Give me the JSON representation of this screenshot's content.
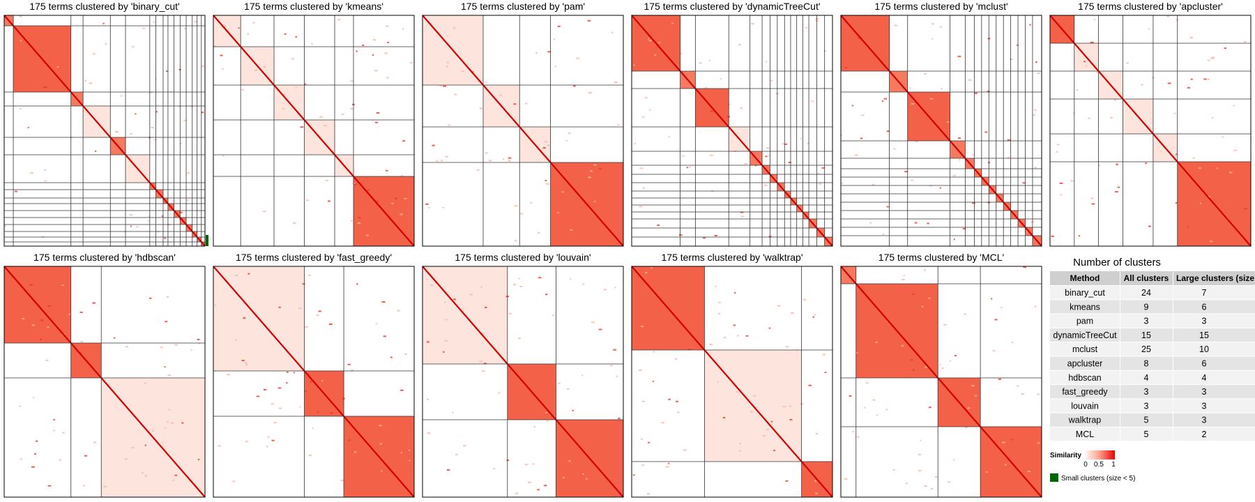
{
  "chart_data": [
    {
      "type": "heatmap",
      "title": "175 terms clustered by 'binary_cut'",
      "method": "binary_cut",
      "n_terms": 175,
      "n_clusters": 24
    },
    {
      "type": "heatmap",
      "title": "175 terms clustered by 'kmeans'",
      "method": "kmeans",
      "n_terms": 175,
      "n_clusters": 9
    },
    {
      "type": "heatmap",
      "title": "175 terms clustered by 'pam'",
      "method": "pam",
      "n_terms": 175,
      "n_clusters": 3
    },
    {
      "type": "heatmap",
      "title": "175 terms clustered by 'dynamicTreeCut'",
      "method": "dynamicTreeCut",
      "n_terms": 175,
      "n_clusters": 15
    },
    {
      "type": "heatmap",
      "title": "175 terms clustered by 'mclust'",
      "method": "mclust",
      "n_terms": 175,
      "n_clusters": 25
    },
    {
      "type": "heatmap",
      "title": "175 terms clustered by 'apcluster'",
      "method": "apcluster",
      "n_terms": 175,
      "n_clusters": 8
    },
    {
      "type": "heatmap",
      "title": "175 terms clustered by 'hdbscan'",
      "method": "hdbscan",
      "n_terms": 175,
      "n_clusters": 4
    },
    {
      "type": "heatmap",
      "title": "175 terms clustered by 'fast_greedy'",
      "method": "fast_greedy",
      "n_terms": 175,
      "n_clusters": 3
    },
    {
      "type": "heatmap",
      "title": "175 terms clustered by 'louvain'",
      "method": "louvain",
      "n_terms": 175,
      "n_clusters": 3
    },
    {
      "type": "heatmap",
      "title": "175 terms clustered by 'walktrap'",
      "method": "walktrap",
      "n_terms": 175,
      "n_clusters": 5
    },
    {
      "type": "heatmap",
      "title": "175 terms clustered by 'MCL'",
      "method": "MCL",
      "n_terms": 175,
      "n_clusters": 5
    },
    {
      "type": "table",
      "title": "Number of clusters",
      "columns": [
        "Method",
        "All clusters",
        "Large clusters (size"
      ],
      "rows": [
        [
          "binary_cut",
          "24",
          "7"
        ],
        [
          "kmeans",
          "9",
          "6"
        ],
        [
          "pam",
          "3",
          "3"
        ],
        [
          "dynamicTreeCut",
          "15",
          "15"
        ],
        [
          "mclust",
          "25",
          "10"
        ],
        [
          "apcluster",
          "8",
          "6"
        ],
        [
          "hdbscan",
          "4",
          "4"
        ],
        [
          "fast_greedy",
          "3",
          "3"
        ],
        [
          "louvain",
          "3",
          "3"
        ],
        [
          "walktrap",
          "5",
          "3"
        ],
        [
          "MCL",
          "5",
          "2"
        ]
      ]
    }
  ],
  "legend": {
    "title": "Similarity",
    "ticks": [
      "0",
      "0.5",
      "1"
    ],
    "color_low": "#ffffff",
    "color_high": "#ee0000",
    "small_label": "Small clusters (size < 5)",
    "small_color": "#006400"
  }
}
